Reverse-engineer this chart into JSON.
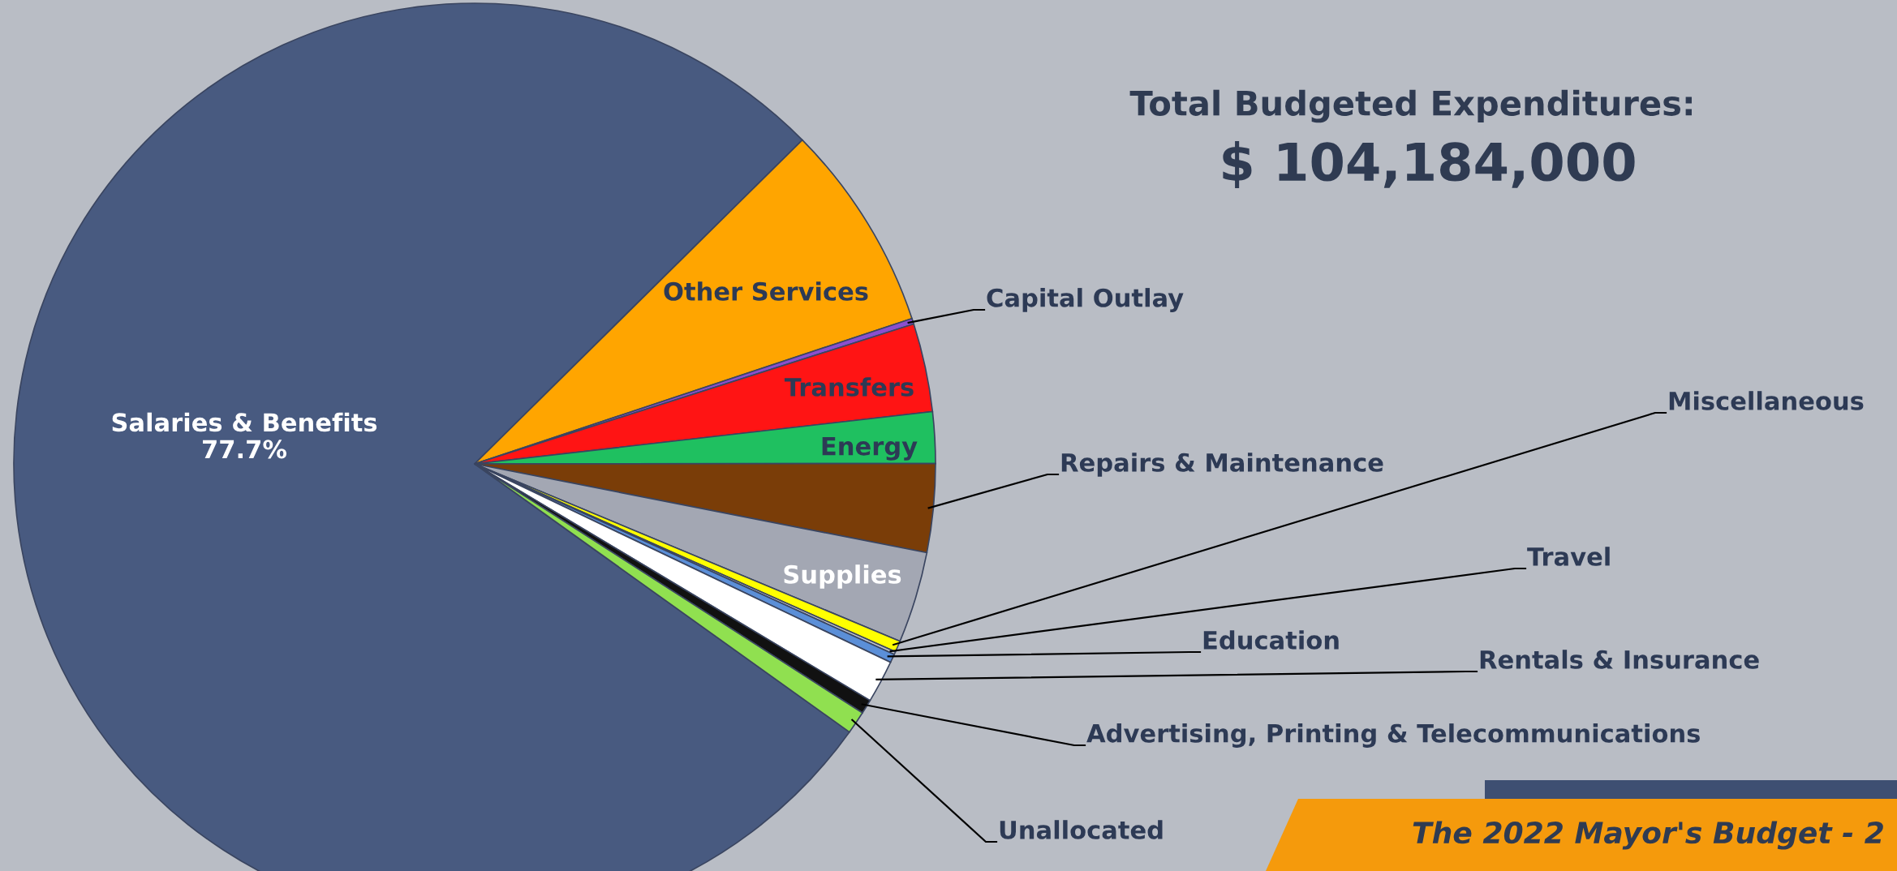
{
  "chart_data": {
    "type": "pie",
    "title": "Total Budgeted Expenditures:",
    "subtitle": "$ 104,184,000",
    "categories": [
      "Salaries & Benefits",
      "Other Services",
      "Capital Outlay",
      "Transfers",
      "Energy",
      "Repairs & Maintenance",
      "Supplies",
      "Miscellaneous",
      "Travel",
      "Education",
      "Rentals & Insurance",
      "Advertising, Printing & Telecommunications",
      "Unallocated"
    ],
    "values": [
      77.7,
      7.3,
      0.2,
      3.1,
      1.8,
      3.1,
      3.2,
      0.4,
      0.1,
      0.3,
      1.5,
      0.5,
      0.8
    ],
    "colors": [
      "#485a80",
      "#ffa500",
      "#8a4fcf",
      "#ff1414",
      "#1fc060",
      "#7a3d08",
      "#a3a7b3",
      "#ffff00",
      "#c0c4cc",
      "#5b8fd8",
      "#ffffff",
      "#111111",
      "#90e050"
    ],
    "value_labels": [
      "77.7%",
      null,
      null,
      null,
      null,
      null,
      null,
      null,
      null,
      null,
      null,
      null,
      null
    ],
    "annotations": [
      "The 2022 Mayor's Budget - 2"
    ]
  }
}
